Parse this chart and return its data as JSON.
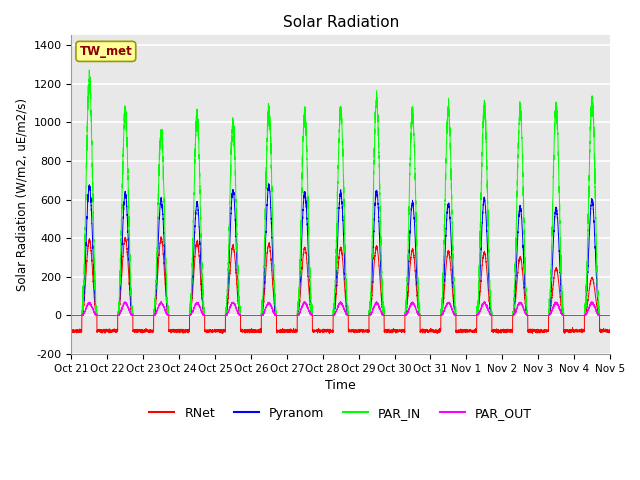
{
  "title": "Solar Radiation",
  "ylabel": "Solar Radiation (W/m2, uE/m2/s)",
  "xlabel": "Time",
  "ylim": [
    -200,
    1450
  ],
  "yticks": [
    -200,
    0,
    200,
    400,
    600,
    800,
    1000,
    1200,
    1400
  ],
  "plot_bg_color": "#e8e8e8",
  "grid_color": "white",
  "line_colors": {
    "RNet": "red",
    "Pyranom": "blue",
    "PAR_IN": "lime",
    "PAR_OUT": "magenta"
  },
  "station_label": "TW_met",
  "station_label_color": "#8b0000",
  "station_box_color": "#ffff99",
  "n_days": 15,
  "x_tick_labels": [
    "Oct 21",
    "Oct 22",
    "Oct 23",
    "Oct 24",
    "Oct 25",
    "Oct 26",
    "Oct 27",
    "Oct 28",
    "Oct 29",
    "Oct 30",
    "Oct 31",
    "Nov 1",
    "Nov 2",
    "Nov 3",
    "Nov 4",
    "Nov 5"
  ],
  "PAR_IN_peaks": [
    1220,
    1060,
    950,
    1025,
    980,
    1060,
    1040,
    1060,
    1110,
    1050,
    1070,
    1070,
    1060,
    1070,
    1110
  ],
  "Pyranom_peaks": [
    670,
    630,
    600,
    580,
    650,
    670,
    635,
    635,
    645,
    585,
    575,
    600,
    560,
    555,
    600
  ],
  "RNet_peaks": [
    390,
    400,
    400,
    380,
    360,
    370,
    350,
    350,
    355,
    340,
    330,
    325,
    300,
    245,
    195
  ],
  "RNet_night": -80,
  "PAR_OUT_day_peak": 65,
  "day_start": 0.28,
  "day_end": 0.72,
  "samples_per_day": 500
}
